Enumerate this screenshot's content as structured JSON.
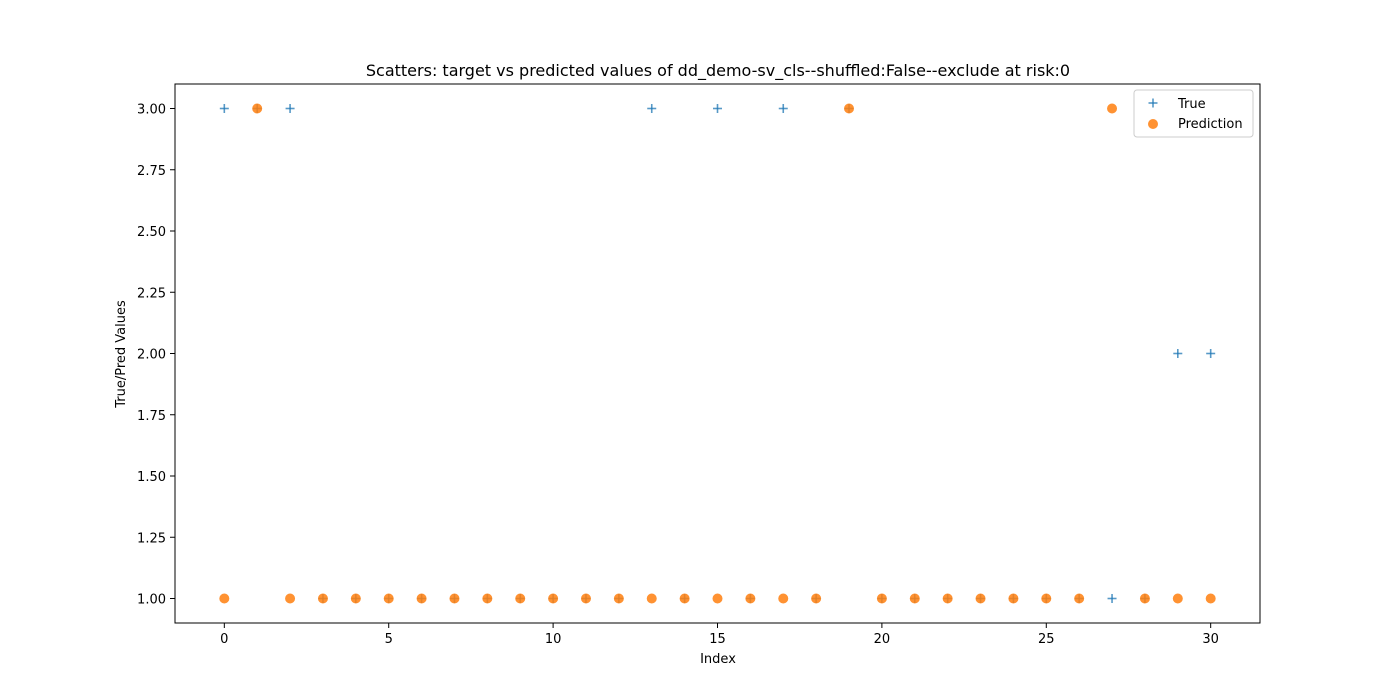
{
  "chart_data": {
    "type": "scatter",
    "title": "Scatters: target vs predicted values of dd_demo-sv_cls--shuffled:False--exclude at risk:0",
    "xlabel": "Index",
    "ylabel": "True/Pred Values",
    "xlim": [
      -1.5,
      31.5
    ],
    "ylim": [
      0.9,
      3.1
    ],
    "xticks": [
      0,
      5,
      10,
      15,
      20,
      25,
      30
    ],
    "yticks": [
      1.0,
      1.25,
      1.5,
      1.75,
      2.0,
      2.25,
      2.5,
      2.75,
      3.0
    ],
    "ytick_labels": [
      "1.00",
      "1.25",
      "1.50",
      "1.75",
      "2.00",
      "2.25",
      "2.50",
      "2.75",
      "3.00"
    ],
    "grid": false,
    "legend_position": "top-right",
    "series": [
      {
        "name": "True",
        "marker": "plus",
        "color": "#1f77b4",
        "x": [
          0,
          1,
          2,
          3,
          4,
          5,
          6,
          7,
          8,
          9,
          10,
          11,
          12,
          13,
          14,
          15,
          16,
          17,
          18,
          19,
          20,
          21,
          22,
          23,
          24,
          25,
          26,
          27,
          28,
          29,
          30
        ],
        "y": [
          3,
          3,
          3,
          1,
          1,
          1,
          1,
          1,
          1,
          1,
          1,
          1,
          1,
          3,
          1,
          3,
          1,
          3,
          1,
          3,
          1,
          1,
          1,
          1,
          1,
          1,
          1,
          1,
          1,
          2,
          2
        ]
      },
      {
        "name": "Prediction",
        "marker": "circle",
        "color": "#ff7f0e",
        "x": [
          0,
          1,
          2,
          3,
          4,
          5,
          6,
          7,
          8,
          9,
          10,
          11,
          12,
          13,
          14,
          15,
          16,
          17,
          18,
          19,
          20,
          21,
          22,
          23,
          24,
          25,
          26,
          27,
          28,
          29,
          30
        ],
        "y": [
          1,
          3,
          1,
          1,
          1,
          1,
          1,
          1,
          1,
          1,
          1,
          1,
          1,
          1,
          1,
          1,
          1,
          1,
          1,
          3,
          1,
          1,
          1,
          1,
          1,
          1,
          1,
          3,
          1,
          1,
          1
        ]
      }
    ]
  }
}
